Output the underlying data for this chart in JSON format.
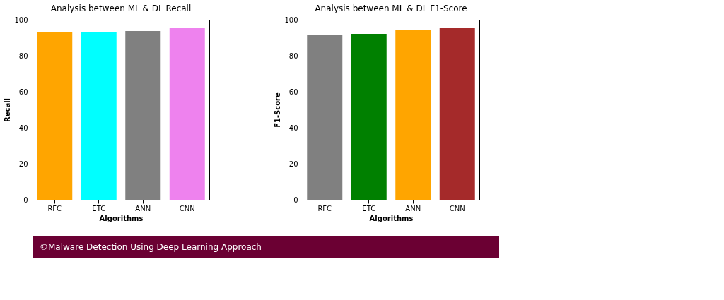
{
  "chart_data": [
    {
      "type": "bar",
      "title": "Analysis between ML & DL Recall",
      "xlabel": "Algorithms",
      "ylabel": "Recall",
      "categories": [
        "RFC",
        "ETC",
        "ANN",
        "CNN"
      ],
      "values": [
        92.9,
        93.2,
        93.7,
        95.5
      ],
      "colors": [
        "#ffa500",
        "#00ffff",
        "#808080",
        "#ee82ee"
      ],
      "ylim": [
        0,
        100
      ],
      "yticks": [
        0,
        20,
        40,
        60,
        80,
        100
      ],
      "grid": false
    },
    {
      "type": "bar",
      "title": "Analysis between ML & DL F1-Score",
      "xlabel": "Algorithms",
      "ylabel": "F1-Score",
      "categories": [
        "RFC",
        "ETC",
        "ANN",
        "CNN"
      ],
      "values": [
        91.7,
        92.2,
        94.3,
        95.5
      ],
      "colors": [
        "#808080",
        "#008000",
        "#ffa500",
        "#a52a2a"
      ],
      "ylim": [
        0,
        100
      ],
      "yticks": [
        0,
        20,
        40,
        60,
        80,
        100
      ],
      "grid": false,
      "annotations": [
        "©Malware Detection Using Deep Learning Approach"
      ]
    }
  ]
}
